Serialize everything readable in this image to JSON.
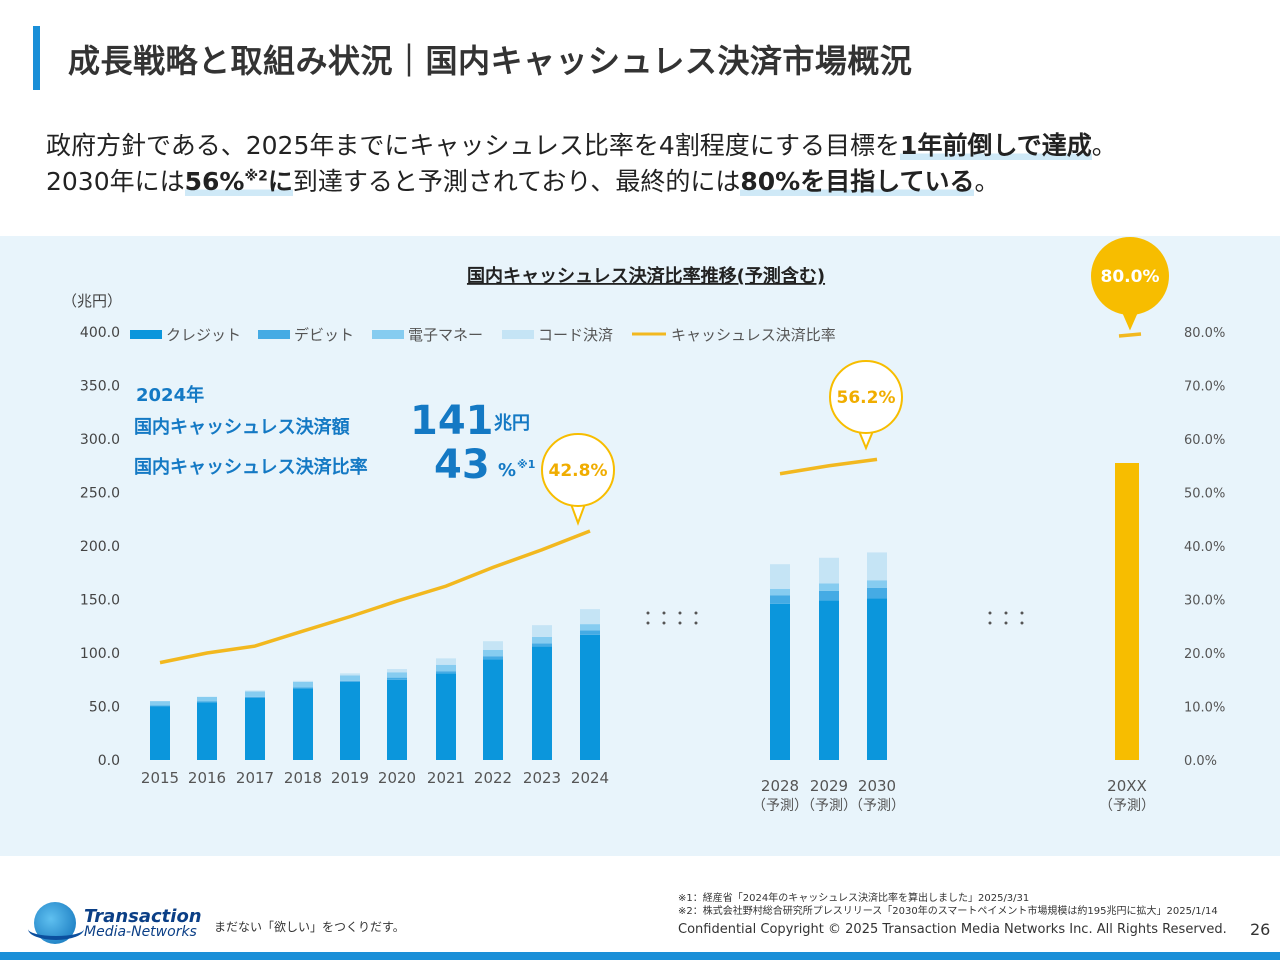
{
  "header": {
    "title": "成長戦略と取組み状況｜国内キャッシュレス決済市場概況"
  },
  "lead": {
    "l1_a": "政府方針である、2025年までにキャッシュレス比率を4割程度にする目標を",
    "l1_b": "1年前倒しで達成",
    "l1_c": "。",
    "l2_a": "2030年には",
    "l2_b": "56%",
    "l2_c": "※2",
    "l2_d": "に",
    "l2_e": "到達すると予測されており、最終的には",
    "l2_f": "80%を目指している",
    "l2_g": "。"
  },
  "chart_data": {
    "type": "bar",
    "title": "国内キャッシュレス決済比率推移(予測含む)",
    "ylabel": "（兆円）",
    "ylim": [
      0,
      400
    ],
    "y2lim": [
      0,
      80
    ],
    "yticks": [
      "0.0",
      "50.0",
      "100.0",
      "150.0",
      "200.0",
      "250.0",
      "300.0",
      "350.0",
      "400.0"
    ],
    "y2ticks": [
      "0.0%",
      "10.0%",
      "20.0%",
      "30.0%",
      "40.0%",
      "50.0%",
      "60.0%",
      "70.0%",
      "80.0%"
    ],
    "categories": [
      "2015",
      "2016",
      "2017",
      "2018",
      "2019",
      "2020",
      "2021",
      "2022",
      "2023",
      "2024",
      "2028",
      "2029",
      "2030",
      "20XX"
    ],
    "category_notes": [
      "",
      "",
      "",
      "",
      "",
      "",
      "",
      "",
      "",
      "",
      "（予測）",
      "（予測）",
      "（予測）",
      "（予測）"
    ],
    "series": [
      {
        "name": "クレジット",
        "color": "#0b96dc",
        "values": [
          50,
          54,
          58,
          67,
          73,
          75,
          81,
          94,
          106,
          117,
          146,
          149,
          151,
          null
        ]
      },
      {
        "name": "デビット",
        "color": "#45abe4",
        "values": [
          1,
          1,
          1,
          1,
          1,
          2,
          2,
          3,
          3,
          4,
          8,
          9,
          10,
          null
        ]
      },
      {
        "name": "電子マネー",
        "color": "#86ccf0",
        "values": [
          4,
          4,
          5,
          5,
          5,
          5,
          6,
          6,
          6,
          6,
          6,
          7,
          7,
          null
        ]
      },
      {
        "name": "コード決済",
        "color": "#c5e4f5",
        "values": [
          0,
          0,
          1,
          1,
          2,
          3,
          6,
          8,
          11,
          14,
          23,
          24,
          26,
          null
        ]
      }
    ],
    "forecast_bar": {
      "category": "20XX",
      "color": "#f7bd00",
      "value_pct": 80.0
    },
    "ratio_series": {
      "name": "キャッシュレス決済比率",
      "color": "#f2b81f",
      "values_pct": [
        18.2,
        20.0,
        21.3,
        24.1,
        26.8,
        29.7,
        32.5,
        36.0,
        39.3,
        42.8,
        53.5,
        55.0,
        56.2,
        80.0
      ]
    },
    "callouts": [
      "42.8%",
      "56.2%",
      "80.0%"
    ],
    "ellipsis": [
      "：：：：",
      "：：："
    ],
    "annotation": {
      "year": "2024年",
      "label1": "国内キャッシュレス決済額",
      "value1": "141",
      "unit1": "兆円",
      "label2": "国内キャッシュレス決済比率",
      "value2": "43",
      "unit2": "%",
      "note2": "※1"
    },
    "legend_position": "top",
    "grid": false
  },
  "footer": {
    "logo_line1": "Transaction",
    "logo_line2": "Media-Networks",
    "tagline": "まだない「欲しい」をつくりだす。",
    "note1": "※1：経産省「2024年のキャッシュレス決済比率を算出しました」2025/3/31",
    "note2": "※2：株式会社野村総合研究所プレスリリース「2030年のスマートペイメント市場規模は約195兆円に拡大」2025/1/14",
    "copyright": "Confidential  Copyright © 2025 Transaction Media Networks Inc. All Rights Reserved.",
    "page": "26"
  },
  "colors": {
    "accent": "#1a8fd8",
    "highlight": "#f7bd00",
    "panel": "#e8f4fb",
    "annotation_text": "#1479c4"
  }
}
